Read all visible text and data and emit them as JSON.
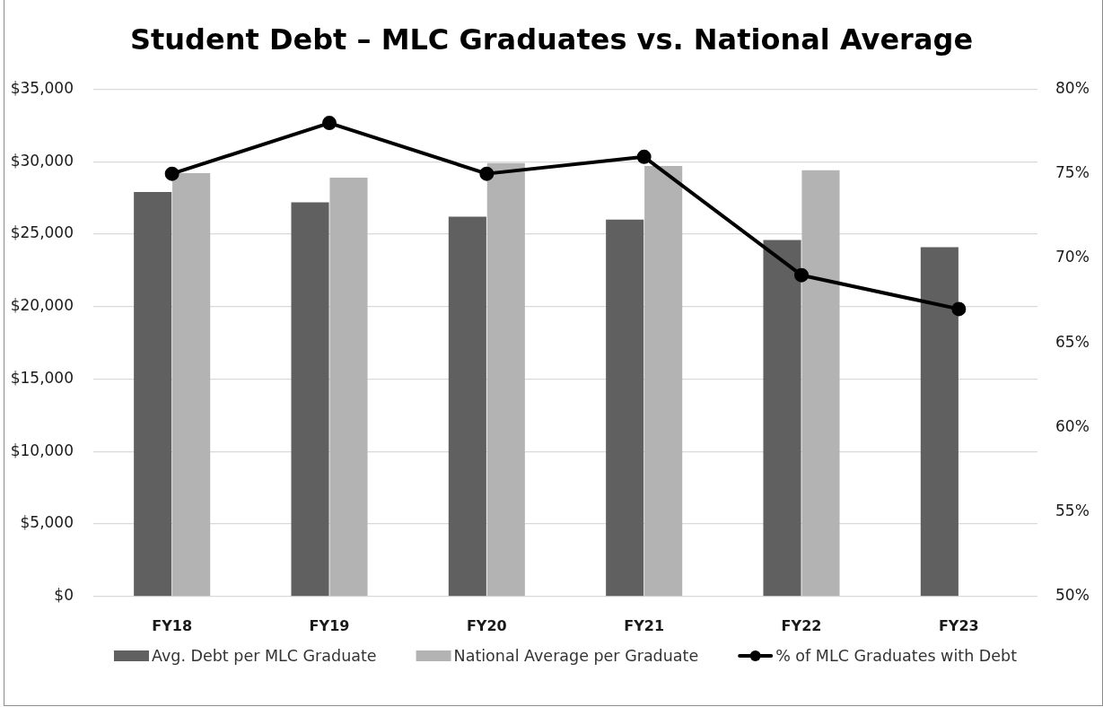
{
  "chart_data": {
    "type": "bar",
    "title": "Student Debt – MLC Graduates vs. National Average",
    "categories": [
      "FY18",
      "FY19",
      "FY20",
      "FY21",
      "FY22",
      "FY23"
    ],
    "series": [
      {
        "name": "Avg. Debt per MLC Graduate",
        "color": "#606060",
        "values": [
          27900,
          27200,
          26200,
          26000,
          24600,
          24100
        ]
      },
      {
        "name": "National Average per Graduate",
        "color": "#b3b3b3",
        "values": [
          29200,
          28900,
          29900,
          29700,
          29400,
          null
        ]
      },
      {
        "name": "% of MLC Graduates with Debt",
        "type": "line",
        "axis": "y2",
        "color": "#000000",
        "values": [
          75,
          78,
          75,
          76,
          69,
          67
        ]
      }
    ],
    "ylim": [
      0,
      35000
    ],
    "yticks": [
      {
        "value": 0,
        "label": "$0"
      },
      {
        "value": 5000,
        "label": "$5,000"
      },
      {
        "value": 10000,
        "label": "$10,000"
      },
      {
        "value": 15000,
        "label": "$15,000"
      },
      {
        "value": 20000,
        "label": "$20,000"
      },
      {
        "value": 25000,
        "label": "$25,000"
      },
      {
        "value": 30000,
        "label": "$30,000"
      },
      {
        "value": 35000,
        "label": "$35,000"
      }
    ],
    "y2lim": [
      50,
      80
    ],
    "y2ticks": [
      {
        "value": 50,
        "label": "50%"
      },
      {
        "value": 55,
        "label": "55%"
      },
      {
        "value": 60,
        "label": "60%"
      },
      {
        "value": 65,
        "label": "65%"
      },
      {
        "value": 70,
        "label": "70%"
      },
      {
        "value": 75,
        "label": "75%"
      },
      {
        "value": 80,
        "label": "80%"
      }
    ],
    "grid": "y",
    "legend": "bottom",
    "marker": "circle"
  }
}
